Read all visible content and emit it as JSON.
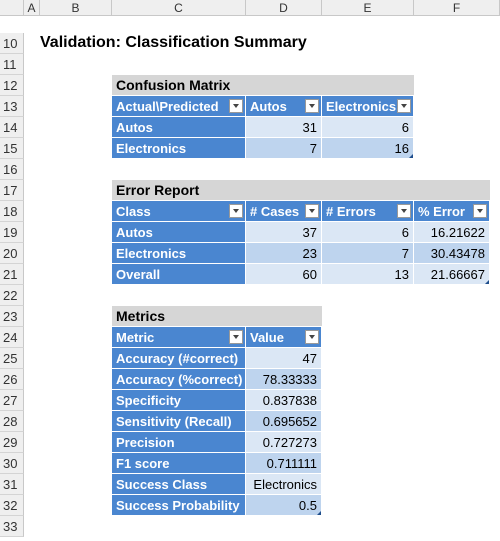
{
  "sheet": {
    "columns": [
      "A",
      "B",
      "C",
      "D",
      "E",
      "F"
    ],
    "rows": [
      "10",
      "11",
      "12",
      "13",
      "14",
      "15",
      "16",
      "17",
      "18",
      "19",
      "20",
      "21",
      "22",
      "23",
      "24",
      "25",
      "26",
      "27",
      "28",
      "29",
      "30",
      "31",
      "32",
      "33"
    ]
  },
  "title": "Validation: Classification Summary",
  "confusion_matrix": {
    "title": "Confusion Matrix",
    "headers": [
      "Actual\\Predicted",
      "Autos",
      "Electronics"
    ],
    "rows": [
      {
        "label": "Autos",
        "values": [
          "31",
          "6"
        ]
      },
      {
        "label": "Electronics",
        "values": [
          "7",
          "16"
        ]
      }
    ]
  },
  "error_report": {
    "title": "Error Report",
    "headers": [
      "Class",
      "# Cases",
      "# Errors",
      "% Error"
    ],
    "rows": [
      {
        "label": "Autos",
        "values": [
          "37",
          "6",
          "16.21622"
        ]
      },
      {
        "label": "Electronics",
        "values": [
          "23",
          "7",
          "30.43478"
        ]
      },
      {
        "label": "Overall",
        "values": [
          "60",
          "13",
          "21.66667"
        ]
      }
    ]
  },
  "metrics": {
    "title": "Metrics",
    "headers": [
      "Metric",
      "Value"
    ],
    "rows": [
      {
        "label": "Accuracy (#correct)",
        "value": "47"
      },
      {
        "label": "Accuracy (%correct)",
        "value": "78.33333"
      },
      {
        "label": "Specificity",
        "value": "0.837838"
      },
      {
        "label": "Sensitivity (Recall)",
        "value": "0.695652"
      },
      {
        "label": "Precision",
        "value": "0.727273"
      },
      {
        "label": "F1 score",
        "value": "0.711111"
      },
      {
        "label": "Success Class",
        "value": "Electronics"
      },
      {
        "label": "Success Probability",
        "value": "0.5"
      }
    ]
  },
  "colors": {
    "header_blue": "#4a86d0",
    "value_light": "#dbe7f5",
    "value_mid": "#bed4ee",
    "table_title_gray": "#d6d6d6"
  },
  "icons": {
    "filter_dropdown": "chevron-down-icon"
  }
}
